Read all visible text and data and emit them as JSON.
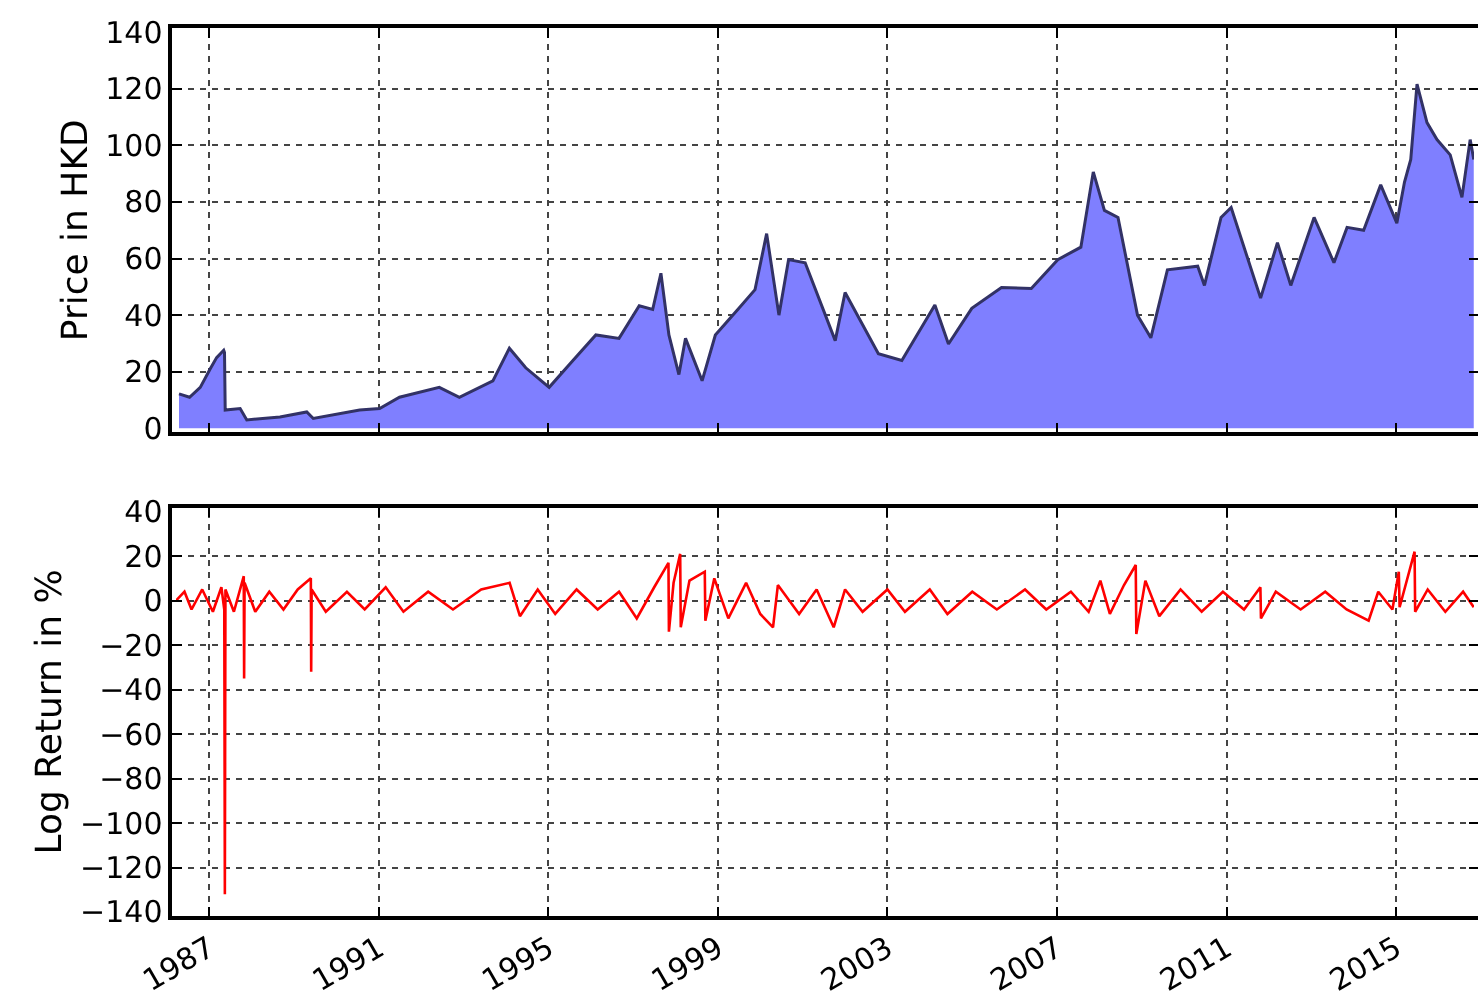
{
  "chart_data": [
    {
      "type": "area",
      "ylabel": "Price in HKD",
      "xlim": [
        "1986-03-20",
        "2016-11-03"
      ],
      "xticks": [
        "1987",
        "1991",
        "1995",
        "1999",
        "2003",
        "2007",
        "2011",
        "2015"
      ],
      "ylim": [
        0,
        140
      ],
      "yticks": [
        0,
        20,
        40,
        60,
        80,
        100,
        120,
        140
      ],
      "grid": true,
      "tick_labels": "y",
      "series": [
        {
          "color": "#7f7fff",
          "x": [
            "1986-04-15",
            "1986-07-15",
            "1986-10-15",
            "1987-01-08",
            "1987-03-05",
            "1987-05-05",
            "1987-05-12",
            "1987-05-18",
            "1987-09-24",
            "1987-11-20",
            "1988-09-01",
            "1989-04-20",
            "1989-06-15",
            "1990-07-20",
            "1991-01-08",
            "1991-06-28",
            "1992-06-05",
            "1992-11-25",
            "1993-09-10",
            "1994-01-30",
            "1994-06-20",
            "1995-01-08",
            "1995-07-26",
            "1996-02-14",
            "1996-09-01",
            "1997-02-22",
            "1997-06-18",
            "1997-08-28",
            "1997-11-05",
            "1998-01-30",
            "1998-03-28",
            "1998-08-18",
            "1998-12-10",
            "1999-05-05",
            "1999-07-01",
            "1999-11-17",
            "2000-02-25",
            "2000-06-10",
            "2000-09-01",
            "2001-01-22",
            "2001-10-08",
            "2002-01-01",
            "2002-10-15",
            "2003-05-05",
            "2004-02-14",
            "2004-06-10",
            "2004-12-28",
            "2005-09-10",
            "2006-05-25",
            "2007-01-08",
            "2007-07-26",
            "2007-11-10",
            "2008-02-14",
            "2008-06-10",
            "2008-11-25",
            "2009-03-20",
            "2009-08-10",
            "2010-04-28",
            "2010-06-25",
            "2010-11-15",
            "2011-02-10",
            "2011-10-22",
            "2012-03-15",
            "2012-07-08",
            "2013-01-25",
            "2013-07-15",
            "2013-11-05",
            "2014-03-28",
            "2014-08-22",
            "2015-01-08",
            "2015-03-15",
            "2015-05-08",
            "2015-07-01",
            "2015-09-25",
            "2015-12-20",
            "2016-04-12",
            "2016-07-22",
            "2016-10-01",
            "2016-11-01"
          ],
          "values": [
            12.2,
            11,
            14.5,
            21,
            25,
            27.6,
            26.8,
            6.5,
            7,
            3,
            4,
            5.8,
            3.5,
            6.5,
            7,
            11,
            14.5,
            11,
            16.8,
            28.3,
            21.4,
            14.5,
            23.7,
            33,
            31.8,
            43.3,
            42,
            54.8,
            33,
            19,
            31.8,
            16.8,
            33,
            39.8,
            42.4,
            49,
            68.8,
            40,
            59.6,
            58.5,
            31,
            48,
            26.4,
            24,
            43.6,
            29.8,
            42.4,
            49.8,
            49.4,
            59.6,
            64,
            90.6,
            77,
            74.5,
            40,
            32,
            56,
            57.3,
            50.5,
            74.5,
            78,
            46,
            65.6,
            50.5,
            74.5,
            58.5,
            71,
            70,
            86,
            72.5,
            87,
            95,
            121.6,
            108,
            102,
            96.6,
            81.6,
            102,
            95
          ]
        }
      ]
    },
    {
      "type": "line",
      "ylabel": "Log Return in %",
      "xlim": [
        "1986-03-20",
        "2016-11-03"
      ],
      "xticks": [
        "1987",
        "1991",
        "1995",
        "1999",
        "2003",
        "2007",
        "2011",
        "2015"
      ],
      "ylim": [
        -140,
        40
      ],
      "yticks": [
        -140,
        -120,
        -100,
        -80,
        -60,
        -40,
        -20,
        0,
        20,
        40
      ],
      "grid": true,
      "series": [
        {
          "color": "#ff0000",
          "x": [
            "1986-03-20",
            "1986-06-01",
            "1986-08-01",
            "1986-11-01",
            "1987-02-01",
            "1987-04-15",
            "1987-05-10",
            "1987-05-15",
            "1987-05-20",
            "1987-08-01",
            "1987-10-25",
            "1987-10-28",
            "1987-11-01",
            "1988-02-01",
            "1988-06-01",
            "1988-10-01",
            "1989-02-01",
            "1989-05-25",
            "1989-05-28",
            "1989-06-01",
            "1989-10-01",
            "1990-04-01",
            "1990-09-01",
            "1991-03-01",
            "1991-08-01",
            "1992-03-01",
            "1992-10-01",
            "1993-06-01",
            "1994-02-01",
            "1994-05-01",
            "1994-10-01",
            "1995-03-01",
            "1995-09-01",
            "1996-03-01",
            "1996-09-01",
            "1997-02-01",
            "1997-07-01",
            "1997-11-01",
            "1997-11-05",
            "1997-12-15",
            "1998-02-10",
            "1998-02-15",
            "1998-05-01",
            "1998-09-10",
            "1998-09-15",
            "1998-12-01",
            "1999-04-01",
            "1999-09-01",
            "2000-01-01",
            "2000-04-20",
            "2000-06-01",
            "2000-12-01",
            "2001-05-01",
            "2001-09-25",
            "2002-01-01",
            "2002-06-01",
            "2003-01-01",
            "2003-06-01",
            "2004-01-01",
            "2004-06-01",
            "2005-01-01",
            "2005-08-01",
            "2006-04-01",
            "2006-10-01",
            "2007-05-01",
            "2007-10-01",
            "2008-01-10",
            "2008-04-01",
            "2008-08-01",
            "2008-11-10",
            "2008-11-15",
            "2009-02-01",
            "2009-06-01",
            "2009-12-01",
            "2010-06-01",
            "2010-12-01",
            "2011-06-01",
            "2011-10-20",
            "2011-10-25",
            "2012-03-01",
            "2012-10-01",
            "2013-05-01",
            "2013-11-01",
            "2014-05-10",
            "2014-08-01",
            "2014-12-01",
            "2015-01-25",
            "2015-02-01",
            "2015-06-10",
            "2015-06-15",
            "2015-10-01",
            "2016-03-01",
            "2016-08-01",
            "2016-11-01"
          ],
          "values": [
            0,
            4,
            -4,
            5,
            -5,
            6,
            -4,
            -132,
            5,
            -5,
            11,
            -35,
            8,
            -5,
            4,
            -4,
            5,
            10,
            -32,
            5,
            -5,
            4,
            -4,
            6,
            -5,
            4,
            -4,
            5,
            8,
            -7,
            5,
            -6,
            5,
            -4,
            4,
            -8,
            6,
            17,
            -14,
            8,
            21,
            -12,
            9,
            13,
            -9,
            10,
            -8,
            8,
            -6,
            -12,
            7,
            -6,
            5,
            -12,
            5,
            -5,
            5,
            -5,
            5,
            -6,
            4,
            -4,
            5,
            -4,
            4,
            -5,
            9,
            -6,
            7,
            16,
            -15,
            9,
            -7,
            5,
            -5,
            4,
            -4,
            6,
            -8,
            4,
            -4,
            4,
            -4,
            -9,
            4,
            -4,
            13,
            -3,
            22,
            -5,
            5,
            -5,
            4,
            -3
          ]
        }
      ]
    }
  ]
}
